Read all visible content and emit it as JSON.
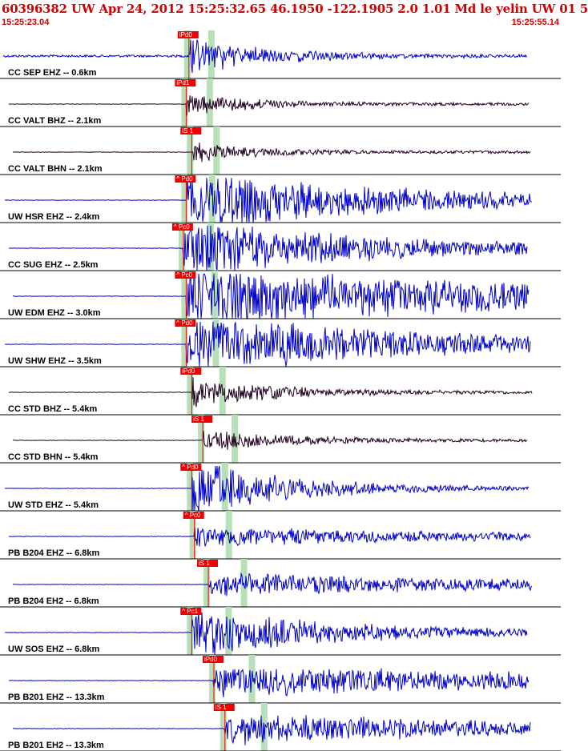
{
  "header": {
    "title": "60396382 UW Apr 24, 2012 15:25:32.65   46.1950 -122.1905  2.0 1.01 Md le yelin UW 01   5",
    "start_time": "15:25:23.04",
    "end_time": "15:25:55.14"
  },
  "colors": {
    "header_text": "#d00000",
    "trace_blue": "#0000cc",
    "trace_dark": "#220022",
    "pick_box": "#ee0000",
    "window_band": "#b8e0b8",
    "separator": "#000000"
  },
  "traces": [
    {
      "label": "CC SEP EHZ -- 0.6km",
      "pick": "iPd0",
      "onset": 0.335,
      "amp": 0.55,
      "decay": 4,
      "color": "blue",
      "noise": 0.05,
      "s_pick": false
    },
    {
      "label": "CC VALT BHZ -- 2.1km",
      "pick": "iPd1",
      "onset": 0.33,
      "amp": 0.35,
      "decay": 5,
      "color": "dark",
      "noise": 0.0,
      "s_pick": false
    },
    {
      "label": "CC VALT BHN -- 2.1km",
      "pick": "iS 1",
      "onset": 0.34,
      "amp": 0.3,
      "decay": 5,
      "color": "dark",
      "noise": 0.0,
      "s_pick": true
    },
    {
      "label": "UW HSR EHZ -- 2.4km",
      "pick": "^ Pd0",
      "onset": 0.33,
      "amp": 0.95,
      "decay": 1.6,
      "color": "blue",
      "noise": 0.0,
      "s_pick": false
    },
    {
      "label": "CC SUG EHZ -- 2.5km",
      "pick": "^ Pc0",
      "onset": 0.325,
      "amp": 0.95,
      "decay": 1.8,
      "color": "blue",
      "noise": 0.0,
      "s_pick": false
    },
    {
      "label": "UW EDM EHZ -- 3.0km",
      "pick": "^ Pc0",
      "onset": 0.33,
      "amp": 1.0,
      "decay": 0.9,
      "color": "blue",
      "noise": 0.0,
      "s_pick": false
    },
    {
      "label": "UW SHW EHZ -- 3.5km",
      "pick": "^ Pd0",
      "onset": 0.33,
      "amp": 0.95,
      "decay": 1.4,
      "color": "blue",
      "noise": 0.0,
      "s_pick": false
    },
    {
      "label": "CC STD BHZ -- 5.4km",
      "pick": "iPd0",
      "onset": 0.34,
      "amp": 0.45,
      "decay": 4,
      "color": "dark",
      "noise": 0.0,
      "s_pick": false
    },
    {
      "label": "CC STD BHN -- 5.4km",
      "pick": "iS 1",
      "onset": 0.36,
      "amp": 0.35,
      "decay": 4,
      "color": "dark",
      "noise": 0.0,
      "s_pick": true
    },
    {
      "label": "UW STD EHZ -- 5.4km",
      "pick": "^ Pd0",
      "onset": 0.34,
      "amp": 0.95,
      "decay": 3.5,
      "color": "blue",
      "noise": 0.0,
      "s_pick": false
    },
    {
      "label": "PB B204 EHZ -- 6.8km",
      "pick": "^ Pc0",
      "onset": 0.345,
      "amp": 0.3,
      "decay": 1.2,
      "color": "blue",
      "noise": 0.0,
      "s_pick": false
    },
    {
      "label": "PB B204 EH2 -- 6.8km",
      "pick": "iS 1",
      "onset": 0.37,
      "amp": 0.35,
      "decay": 1.0,
      "color": "blue",
      "noise": 0.0,
      "s_pick": true
    },
    {
      "label": "UW SOS EHZ -- 6.8km",
      "pick": "^ Pc1",
      "onset": 0.34,
      "amp": 0.75,
      "decay": 2.2,
      "color": "blue",
      "noise": 0.0,
      "s_pick": false
    },
    {
      "label": "PB B201 EHZ -- 13.3km",
      "pick": "iPd0",
      "onset": 0.38,
      "amp": 0.5,
      "decay": 0.8,
      "color": "blue",
      "noise": 0.0,
      "s_pick": false
    },
    {
      "label": "PB B201 EH2 -- 13.3km",
      "pick": "iS 1",
      "onset": 0.4,
      "amp": 0.5,
      "decay": 1.0,
      "color": "blue",
      "noise": 0.0,
      "s_pick": true
    }
  ]
}
